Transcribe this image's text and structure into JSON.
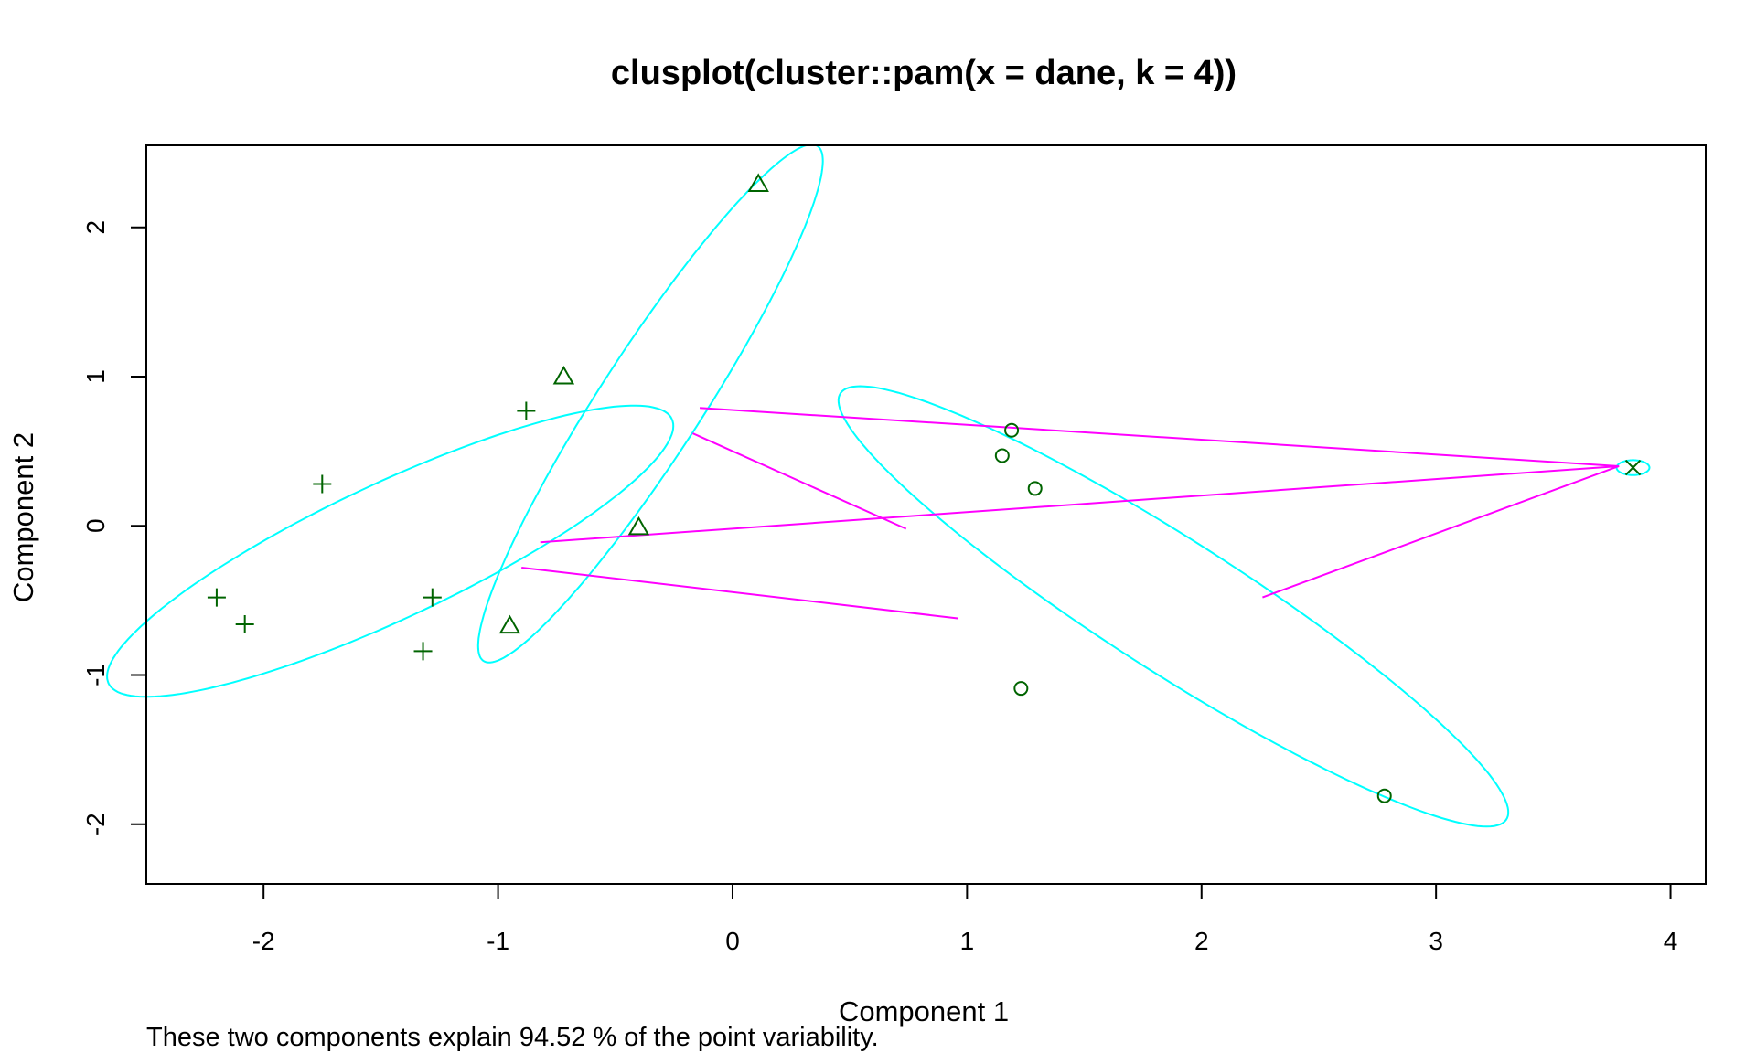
{
  "chart_data": {
    "type": "scatter",
    "title": "clusplot(cluster::pam(x = dane, k = 4))",
    "xlabel": "Component 1",
    "ylabel": "Component 2",
    "subtitle": "These two components explain 94.52 % of the point variability.",
    "xlim": [
      -2.5,
      4.15
    ],
    "ylim": [
      -2.4,
      2.55
    ],
    "x_ticks": [
      -2,
      -1,
      0,
      1,
      2,
      3,
      4
    ],
    "y_ticks": [
      -2,
      -1,
      0,
      1,
      2
    ],
    "grid": false,
    "legend": "none",
    "colors": {
      "points": "#006400",
      "ellipses": "#00ffff",
      "connectors": "#ff00ff",
      "frame": "#000000"
    },
    "clusters": [
      {
        "marker": "plus",
        "points": [
          {
            "x": -2.2,
            "y": -0.48
          },
          {
            "x": -2.08,
            "y": -0.66
          },
          {
            "x": -1.75,
            "y": 0.28
          },
          {
            "x": -1.32,
            "y": -0.84
          },
          {
            "x": -1.28,
            "y": -0.48
          },
          {
            "x": -0.88,
            "y": 0.77
          }
        ],
        "ellipse": {
          "center": [
            -1.46,
            -0.17
          ],
          "semi_axes": [
            1.5,
            0.4
          ],
          "angle_deg": 38
        }
      },
      {
        "marker": "triangle",
        "points": [
          {
            "x": 0.11,
            "y": 2.29
          },
          {
            "x": -0.72,
            "y": 1.0
          },
          {
            "x": -0.4,
            "y": -0.01
          },
          {
            "x": -0.95,
            "y": -0.67
          }
        ],
        "ellipse": {
          "center": [
            -0.35,
            0.82
          ],
          "semi_axes": [
            1.87,
            0.24
          ],
          "angle_deg": 68
        }
      },
      {
        "marker": "circle",
        "points": [
          {
            "x": 1.19,
            "y": 0.64
          },
          {
            "x": 1.15,
            "y": 0.47
          },
          {
            "x": 1.29,
            "y": 0.25
          },
          {
            "x": 1.23,
            "y": -1.09
          },
          {
            "x": 2.78,
            "y": -1.81
          }
        ],
        "ellipse": {
          "center": [
            1.88,
            -0.54
          ],
          "semi_axes": [
            2.02,
            0.37
          ],
          "angle_deg": -46
        }
      },
      {
        "marker": "cross",
        "points": [
          {
            "x": 3.84,
            "y": 0.39
          }
        ],
        "ellipse": {
          "center": [
            3.84,
            0.39
          ],
          "semi_axes": [
            0.07,
            0.05
          ],
          "angle_deg": 0
        }
      }
    ],
    "connectors": [
      {
        "from": [
          -0.14,
          0.79
        ],
        "to": [
          3.78,
          0.4
        ]
      },
      {
        "from": [
          -0.82,
          -0.11
        ],
        "to": [
          3.78,
          0.4
        ]
      },
      {
        "from": [
          -0.17,
          0.62
        ],
        "to": [
          0.74,
          -0.02
        ]
      },
      {
        "from": [
          -0.9,
          -0.28
        ],
        "to": [
          0.96,
          -0.62
        ]
      },
      {
        "from": [
          2.26,
          -0.48
        ],
        "to": [
          3.78,
          0.4
        ]
      }
    ]
  }
}
